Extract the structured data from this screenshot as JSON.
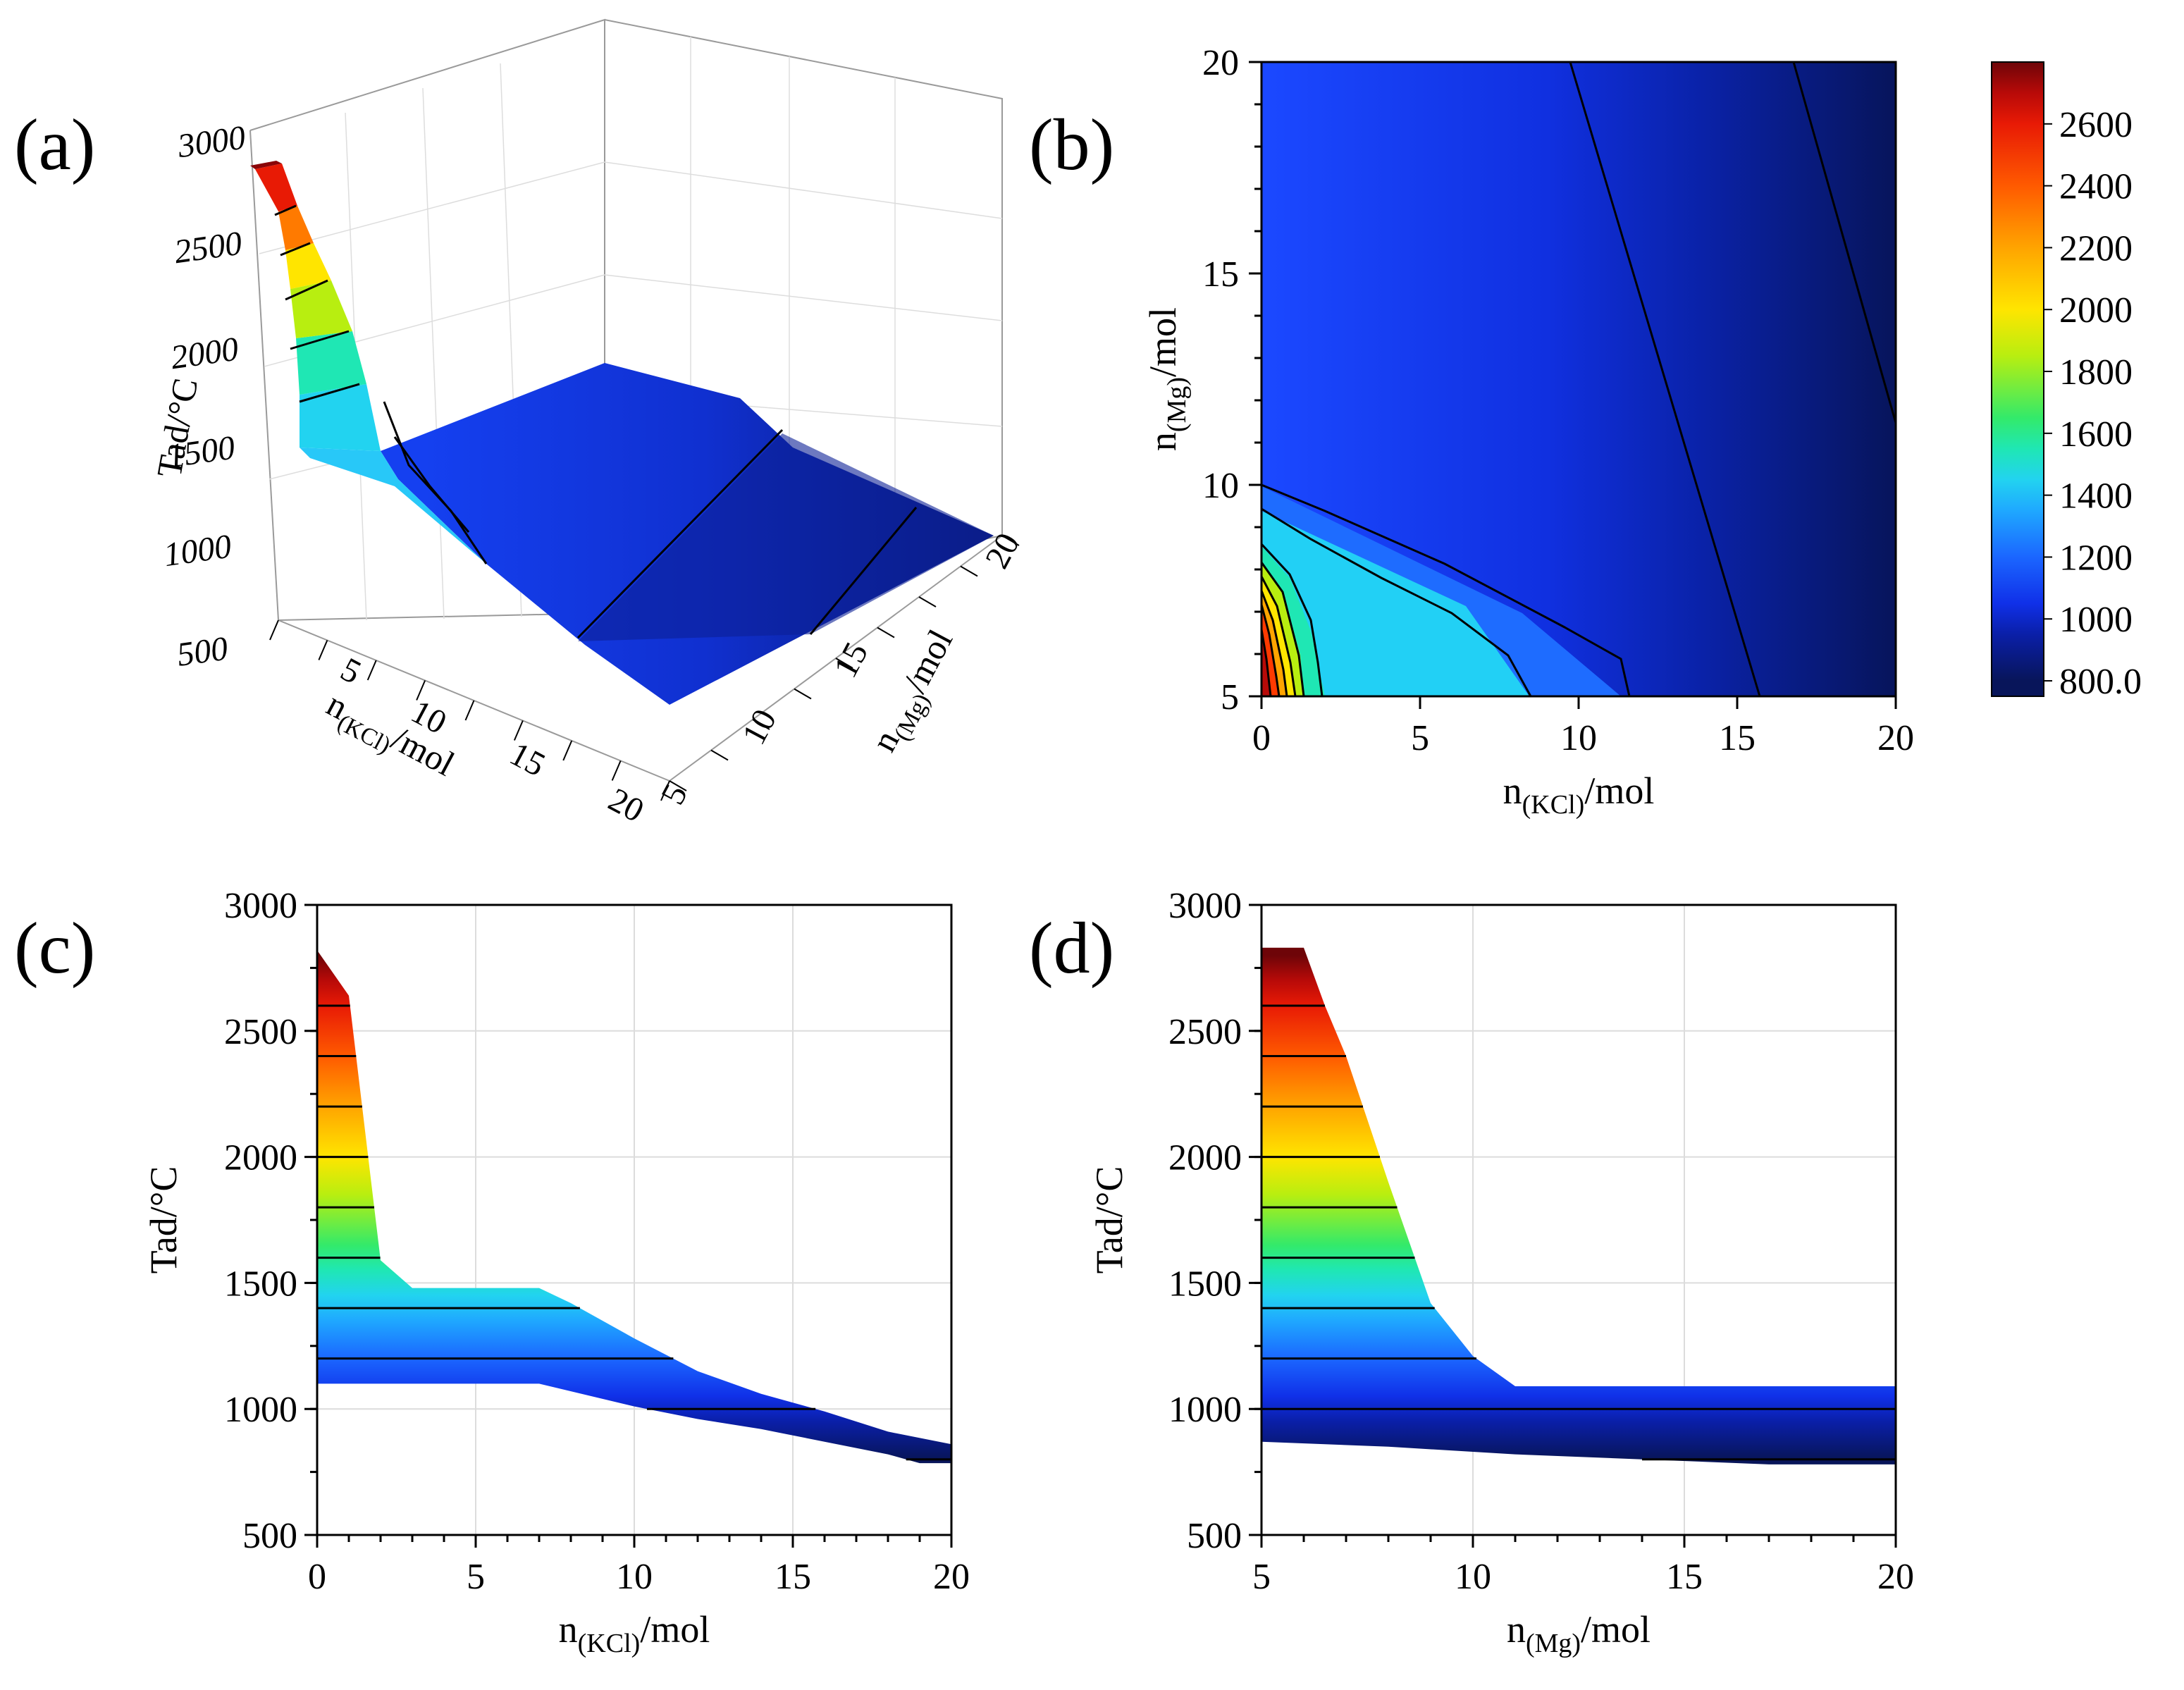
{
  "colors": {
    "colormap": [
      "#08155a",
      "#0a1fa8",
      "#1030e8",
      "#1b66ff",
      "#1fa8ff",
      "#22d3f0",
      "#1fe7b4",
      "#33ea6a",
      "#b8ee10",
      "#ffe500",
      "#ffa400",
      "#ff5a00",
      "#e81a05",
      "#b80a08",
      "#6e0508"
    ],
    "colormap_stops": [
      800,
      950,
      1050,
      1200,
      1350,
      1450,
      1550,
      1650,
      1850,
      2000,
      2200,
      2400,
      2600,
      2700,
      2800
    ],
    "contour_line": "#000000",
    "grid": "#dcdcdc",
    "axis": "#000000"
  },
  "chart_data": [
    {
      "panel": "a",
      "panel_label": "(a)",
      "type": "surface3d",
      "zlabel": "Tad/°C",
      "xlabel": "n(KCl)/mol",
      "ylabel": "n(Mg)/mol",
      "z_ticks": [
        "3000",
        "2500",
        "2000",
        "1500",
        "1000",
        "500"
      ],
      "x_ticks": [
        "5",
        "10",
        "15",
        "20"
      ],
      "y_ticks": [
        "5",
        "10",
        "15",
        "20"
      ],
      "x_range": [
        0,
        20
      ],
      "y_range": [
        5,
        20
      ],
      "z_range": [
        500,
        3000
      ]
    },
    {
      "panel": "b",
      "panel_label": "(b)",
      "type": "heatmap",
      "xlabel": "n(KCl)/mol",
      "ylabel": "n(Mg)/mol",
      "x_ticks": [
        "0",
        "5",
        "10",
        "15",
        "20"
      ],
      "y_ticks": [
        "5",
        "10",
        "15",
        "20"
      ],
      "xlim": [
        0,
        20
      ],
      "ylim": [
        5,
        20
      ],
      "colorbar_ticks": [
        "2600",
        "2400",
        "2200",
        "2000",
        "1800",
        "1600",
        "1400",
        "1200",
        "1000",
        "800.0"
      ],
      "colorbar_range": [
        750,
        2800
      ],
      "contour_levels": [
        800,
        1000,
        1200,
        1400,
        1600,
        1800,
        2000,
        2200,
        2400,
        2600
      ]
    },
    {
      "panel": "c",
      "panel_label": "(c)",
      "type": "area",
      "xlabel": "n(KCl)/mol",
      "ylabel": "Tad/°C",
      "xlim": [
        0,
        20
      ],
      "ylim": [
        500,
        3000
      ],
      "x_ticks": [
        "0",
        "5",
        "10",
        "15",
        "20"
      ],
      "y_ticks": [
        "500",
        "1000",
        "1500",
        "2000",
        "2500",
        "3000"
      ],
      "upper": [
        [
          0,
          2820
        ],
        [
          1,
          2640
        ],
        [
          2,
          1590
        ],
        [
          3,
          1480
        ],
        [
          7,
          1480
        ],
        [
          8,
          1420
        ],
        [
          10,
          1280
        ],
        [
          12,
          1150
        ],
        [
          14,
          1060
        ],
        [
          16,
          990
        ],
        [
          18,
          910
        ],
        [
          20,
          860
        ]
      ],
      "lower": [
        [
          0,
          1100
        ],
        [
          7,
          1100
        ],
        [
          10,
          1010
        ],
        [
          12,
          960
        ],
        [
          14,
          920
        ],
        [
          16,
          870
        ],
        [
          18,
          820
        ],
        [
          19,
          785
        ],
        [
          20,
          785
        ]
      ],
      "contour_levels": [
        800,
        1000,
        1200,
        1400,
        1600,
        1800,
        2000,
        2200,
        2400,
        2600
      ]
    },
    {
      "panel": "d",
      "panel_label": "(d)",
      "type": "area",
      "xlabel": "n(Mg)/mol",
      "ylabel": "Tad/°C",
      "xlim": [
        5,
        20
      ],
      "ylim": [
        500,
        3000
      ],
      "x_ticks": [
        "5",
        "10",
        "15",
        "20"
      ],
      "y_ticks": [
        "500",
        "1000",
        "1500",
        "2000",
        "2500",
        "3000"
      ],
      "upper": [
        [
          5,
          2830
        ],
        [
          6,
          2830
        ],
        [
          6.5,
          2600
        ],
        [
          7,
          2400
        ],
        [
          8,
          1900
        ],
        [
          9,
          1420
        ],
        [
          10,
          1210
        ],
        [
          11,
          1090
        ],
        [
          20,
          1090
        ]
      ],
      "lower": [
        [
          5,
          870
        ],
        [
          8,
          850
        ],
        [
          11,
          820
        ],
        [
          14,
          800
        ],
        [
          17,
          780
        ],
        [
          20,
          780
        ]
      ],
      "contour_levels": [
        800,
        1000,
        1200,
        1400,
        1600,
        1800,
        2000,
        2200,
        2400,
        2600
      ]
    }
  ]
}
